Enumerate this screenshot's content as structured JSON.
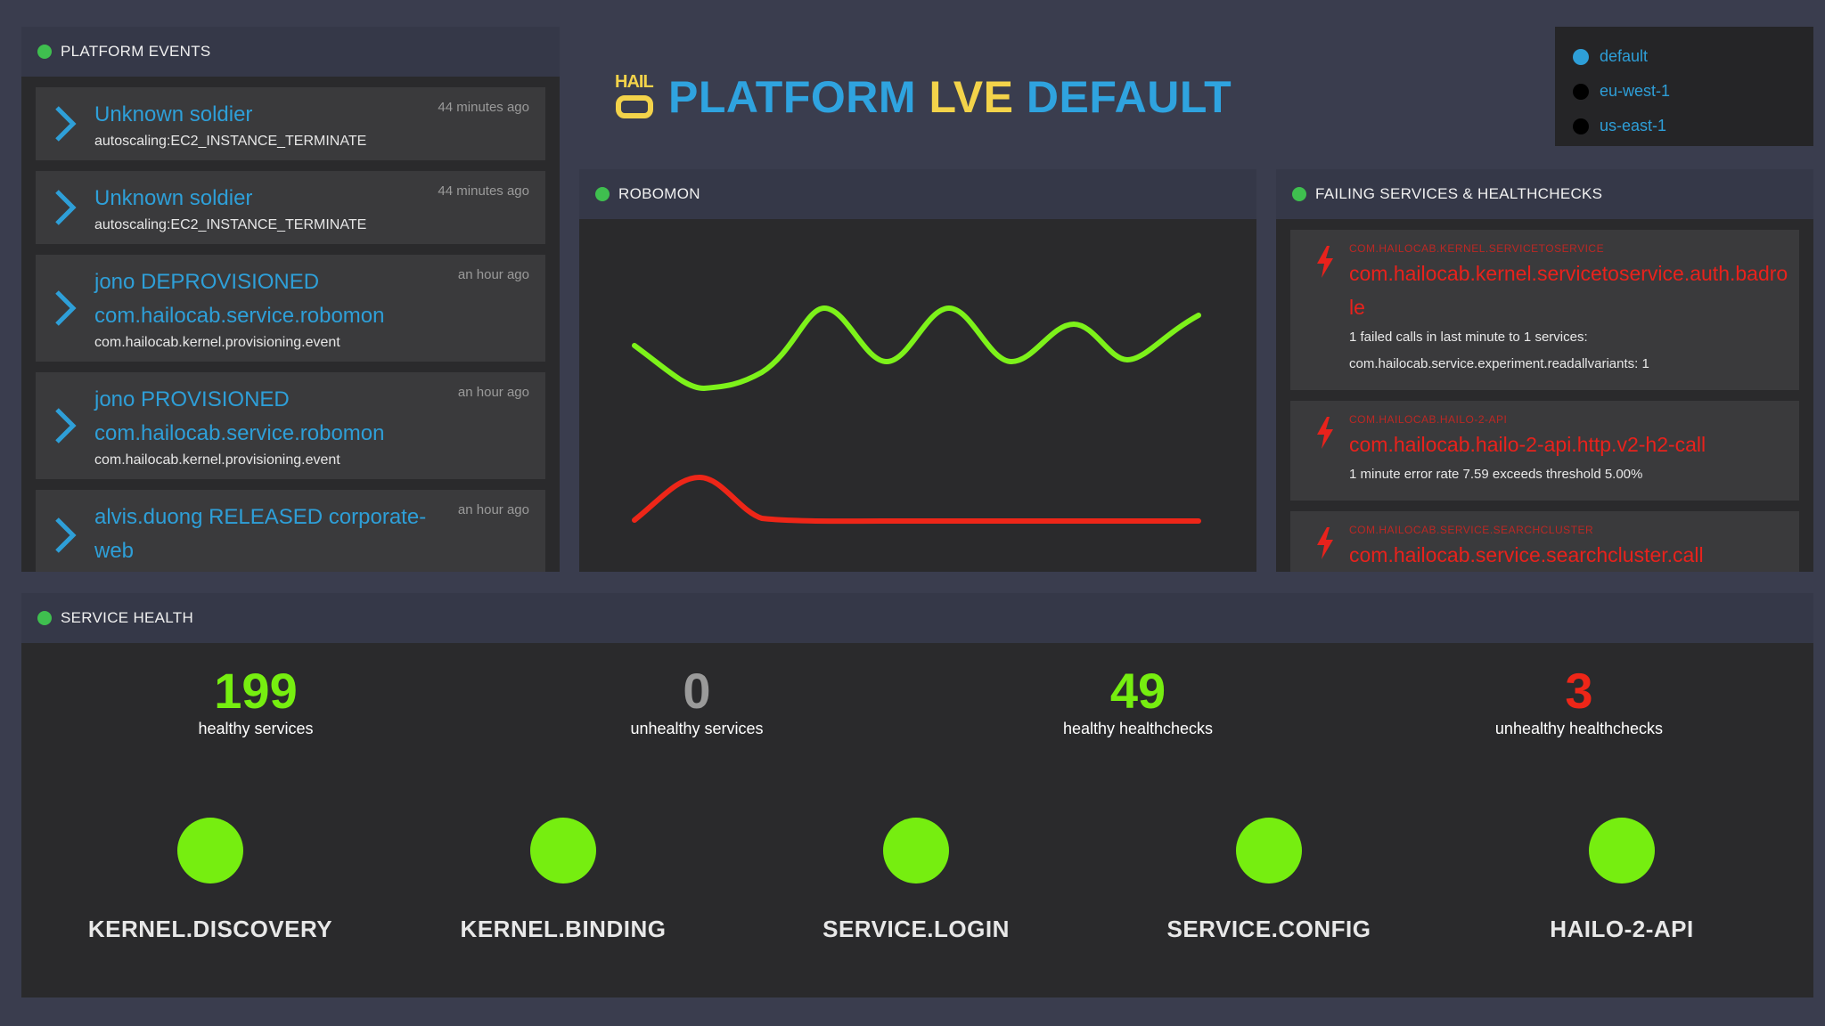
{
  "events_panel": {
    "title": "PLATFORM EVENTS",
    "items": [
      {
        "title": "Unknown soldier",
        "subtitle": "autoscaling:EC2_INSTANCE_TERMINATE",
        "time": "44 minutes ago"
      },
      {
        "title": "Unknown soldier",
        "subtitle": "autoscaling:EC2_INSTANCE_TERMINATE",
        "time": "44 minutes ago"
      },
      {
        "title": "jono DEPROVISIONED com.hailocab.service.robomon",
        "subtitle": "com.hailocab.kernel.provisioning.event",
        "time": "an hour ago"
      },
      {
        "title": "jono PROVISIONED com.hailocab.service.robomon",
        "subtitle": "com.hailocab.kernel.provisioning.event",
        "time": "an hour ago"
      },
      {
        "title": "alvis.duong RELEASED corporate-web",
        "subtitle": "",
        "time": "an hour ago"
      }
    ]
  },
  "brand": {
    "logo_text": "HAIL",
    "word1": "PLATFORM",
    "word2": "LVE",
    "word3": "DEFAULT",
    "colors": {
      "blue": "#2fa3df",
      "yellow": "#f3d34a"
    }
  },
  "regions": [
    {
      "label": "default",
      "color": "#2e9fd8"
    },
    {
      "label": "eu-west-1",
      "color": "#000000"
    },
    {
      "label": "us-east-1",
      "color": "#000000"
    }
  ],
  "robomon": {
    "title": "ROBOMON",
    "series_colors": {
      "upper": "#7df21a",
      "lower": "#ee2618"
    }
  },
  "failing_panel": {
    "title": "FAILING SERVICES & HEALTHCHECKS",
    "items": [
      {
        "category": "COM.HAILOCAB.KERNEL.SERVICETOSERVICE",
        "name": "com.hailocab.kernel.servicetoservice.auth.badrole",
        "messages": [
          "1 failed calls in last minute to 1 services:",
          "com.hailocab.service.experiment.readallvariants: 1"
        ]
      },
      {
        "category": "COM.HAILOCAB.HAILO-2-API",
        "name": "com.hailocab.hailo-2-api.http.v2-h2-call",
        "messages": [
          "1 minute error rate 7.59 exceeds threshold 5.00%"
        ]
      },
      {
        "category": "COM.HAILOCAB.SERVICE.SEARCHCLUSTER",
        "name": "com.hailocab.service.searchcluster.call",
        "messages": []
      }
    ]
  },
  "health_panel": {
    "title": "SERVICE HEALTH",
    "stats": [
      {
        "value": "199",
        "label": "healthy services",
        "color": "#76ee10"
      },
      {
        "value": "0",
        "label": "unhealthy services",
        "color": "#9a9a9a"
      },
      {
        "value": "49",
        "label": "healthy healthchecks",
        "color": "#76ee10"
      },
      {
        "value": "3",
        "label": "unhealthy healthchecks",
        "color": "#ee2618"
      }
    ],
    "services": [
      {
        "name": "KERNEL.DISCOVERY",
        "status": "healthy"
      },
      {
        "name": "KERNEL.BINDING",
        "status": "healthy"
      },
      {
        "name": "SERVICE.LOGIN",
        "status": "healthy"
      },
      {
        "name": "SERVICE.CONFIG",
        "status": "healthy"
      },
      {
        "name": "HAILO-2-API",
        "status": "healthy"
      }
    ]
  },
  "icons": {
    "status_dot": "status-dot-icon",
    "event_chevron": "chevron-right-icon",
    "failure": "lightning-bolt-icon",
    "service_status": "status-circle-icon"
  }
}
